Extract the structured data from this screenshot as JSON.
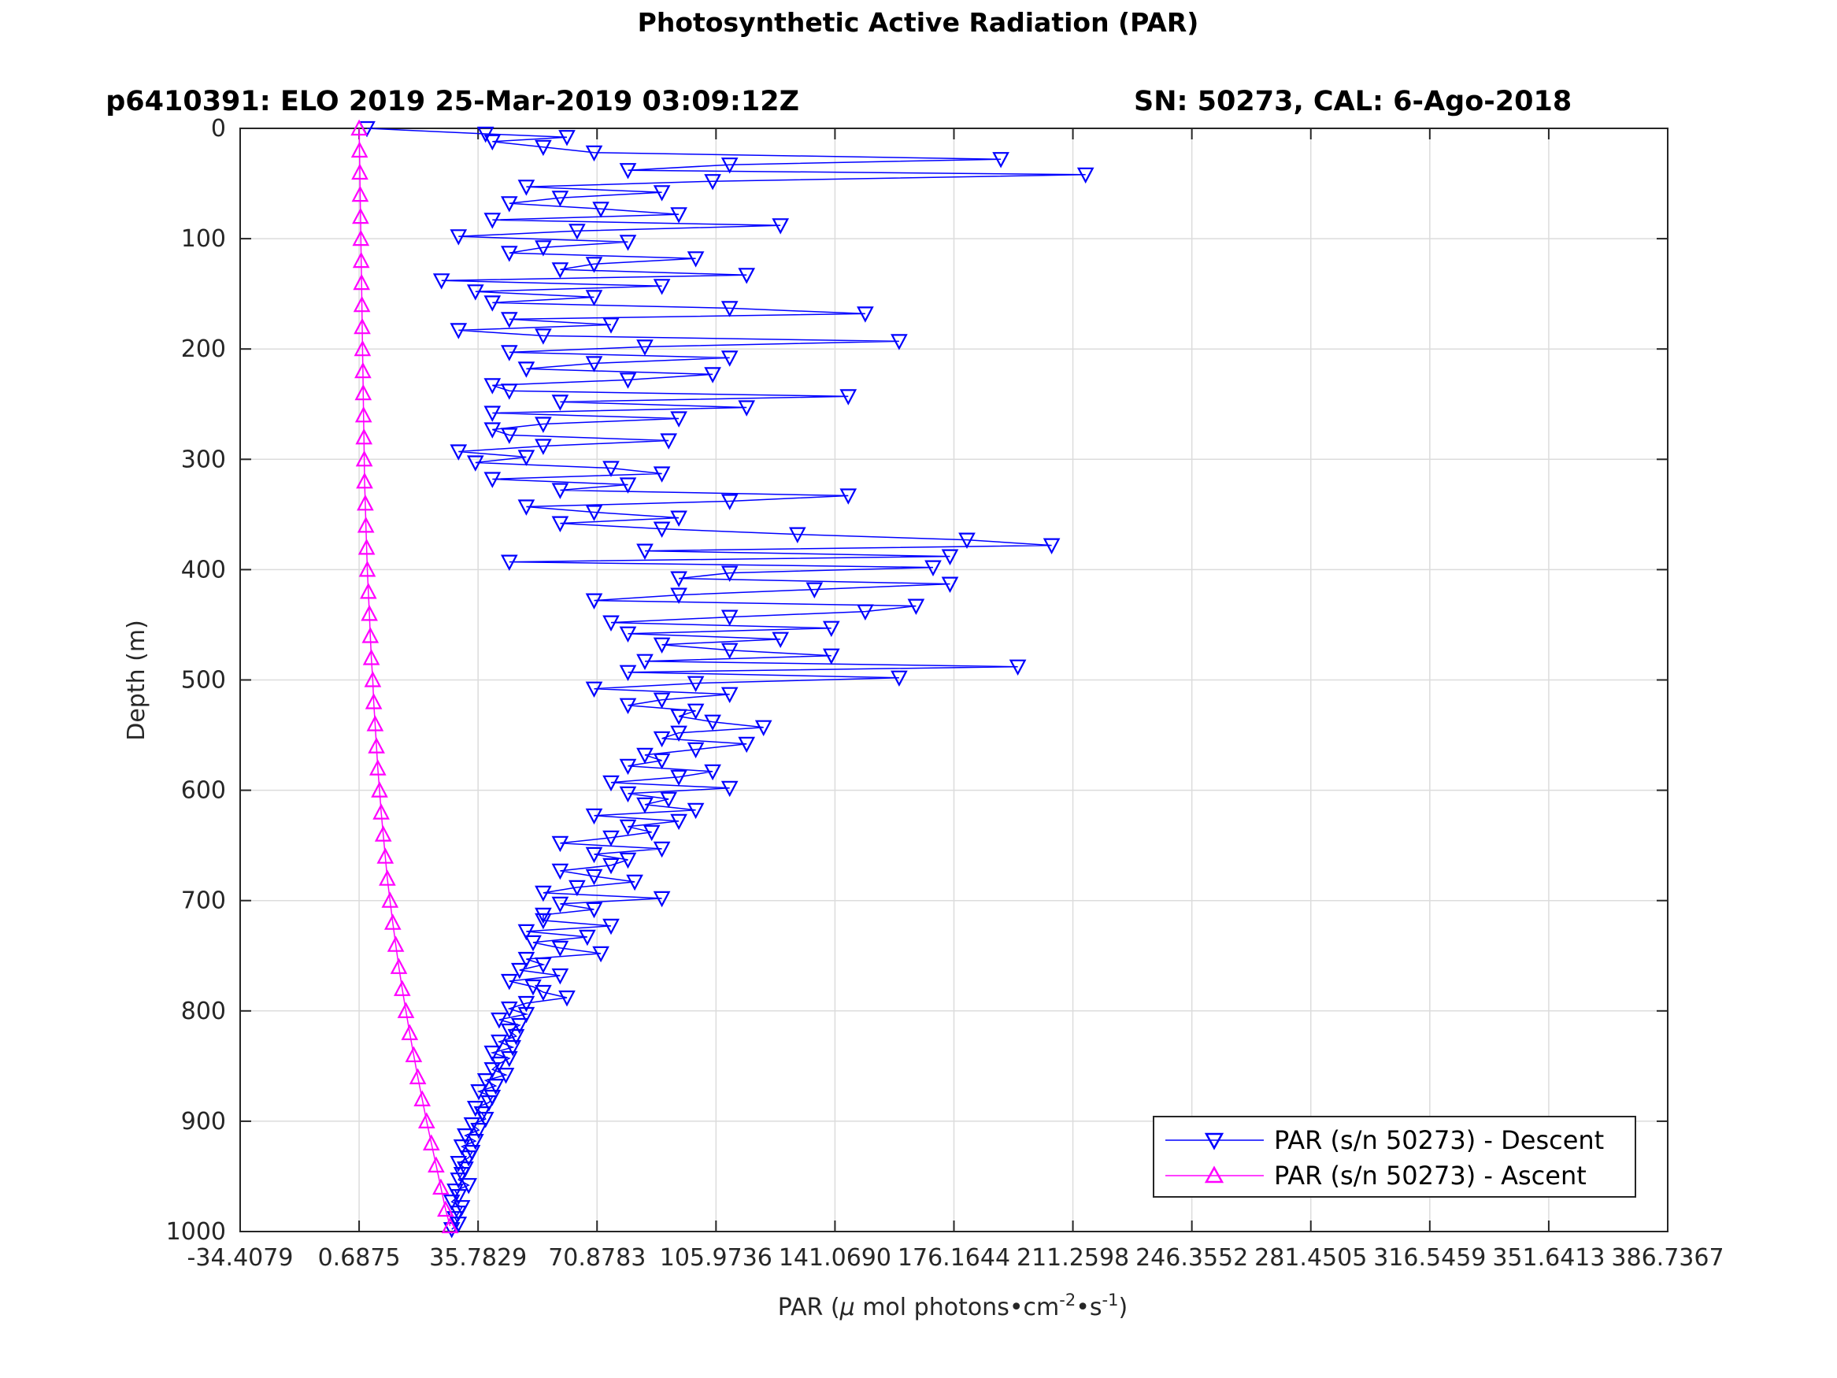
{
  "chart_data": {
    "type": "line",
    "title": "Photosynthetic Active Radiation (PAR)",
    "subtitle_left": "p6410391: ELO 2019 25-Mar-2019 03:09:12Z",
    "subtitle_right": "SN: 50273, CAL: 6-Ago-2018",
    "xlabel_prefix": "PAR (",
    "xlabel_mu": "μ",
    "xlabel_mid": " mol photons•cm",
    "xlabel_sup1": "-2",
    "xlabel_mid2": "•s",
    "xlabel_sup2": "-1",
    "xlabel_suffix": ")",
    "ylabel": "Depth (m)",
    "xlim": [
      -34.4079,
      386.7367
    ],
    "ylim": [
      0,
      1000
    ],
    "y_reversed": true,
    "grid": true,
    "legend_position": "bottom-right",
    "xticks": [
      -34.4079,
      0.6875,
      35.7829,
      70.8783,
      105.9736,
      141.069,
      176.1644,
      211.2598,
      246.3552,
      281.4505,
      316.5459,
      351.6413,
      386.7367
    ],
    "xtick_labels": [
      "-34.4079",
      "0.6875",
      "35.7829",
      "70.8783",
      "105.9736",
      "141.0690",
      "176.1644",
      "211.2598",
      "246.3552",
      "281.4505",
      "316.5459",
      "351.6413",
      "386.7367"
    ],
    "yticks": [
      0,
      100,
      200,
      300,
      400,
      500,
      600,
      700,
      800,
      900,
      1000
    ],
    "ytick_labels": [
      "0",
      "100",
      "200",
      "300",
      "400",
      "500",
      "600",
      "700",
      "800",
      "900",
      "1000"
    ],
    "series": [
      {
        "name": "PAR (s/n 50273) - Descent",
        "color": "#0000ff",
        "marker": "triangle-down",
        "depth": [
          0,
          5,
          8,
          12,
          17,
          22,
          28,
          33,
          38,
          42,
          48,
          53,
          58,
          63,
          68,
          73,
          78,
          83,
          88,
          93,
          98,
          103,
          108,
          113,
          118,
          123,
          128,
          133,
          138,
          143,
          148,
          153,
          158,
          163,
          168,
          173,
          178,
          183,
          188,
          193,
          198,
          203,
          208,
          213,
          218,
          223,
          228,
          233,
          238,
          243,
          248,
          253,
          258,
          263,
          268,
          273,
          278,
          283,
          288,
          293,
          298,
          303,
          308,
          313,
          318,
          323,
          328,
          333,
          338,
          343,
          348,
          353,
          358,
          363,
          368,
          373,
          378,
          383,
          388,
          393,
          398,
          403,
          408,
          413,
          418,
          423,
          428,
          433,
          438,
          443,
          448,
          453,
          458,
          463,
          468,
          473,
          478,
          483,
          488,
          493,
          498,
          503,
          508,
          513,
          518,
          523,
          528,
          533,
          538,
          543,
          548,
          553,
          558,
          563,
          568,
          573,
          578,
          583,
          588,
          593,
          598,
          603,
          608,
          613,
          618,
          623,
          628,
          633,
          638,
          643,
          648,
          653,
          658,
          663,
          668,
          673,
          678,
          683,
          688,
          693,
          698,
          703,
          708,
          713,
          718,
          723,
          728,
          733,
          738,
          743,
          748,
          753,
          758,
          763,
          768,
          773,
          778,
          783,
          788,
          793,
          798,
          803,
          808,
          813,
          818,
          823,
          828,
          833,
          838,
          843,
          848,
          853,
          858,
          863,
          868,
          873,
          878,
          883,
          888,
          893,
          898,
          903,
          908,
          913,
          918,
          923,
          928,
          933,
          938,
          943,
          948,
          953,
          958,
          963,
          968,
          973,
          978,
          983,
          988,
          993,
          998
        ],
        "par": [
          3,
          38,
          62,
          40,
          55,
          70,
          190,
          110,
          80,
          215,
          105,
          50,
          90,
          60,
          45,
          72,
          95,
          40,
          125,
          65,
          30,
          80,
          55,
          45,
          100,
          70,
          60,
          115,
          25,
          90,
          35,
          70,
          40,
          110,
          150,
          45,
          75,
          30,
          55,
          160,
          85,
          45,
          110,
          70,
          50,
          105,
          80,
          40,
          45,
          145,
          60,
          115,
          40,
          95,
          55,
          40,
          45,
          92,
          55,
          30,
          50,
          35,
          75,
          90,
          40,
          80,
          60,
          145,
          110,
          50,
          70,
          95,
          60,
          90,
          130,
          180,
          205,
          85,
          175,
          45,
          170,
          110,
          95,
          175,
          135,
          95,
          70,
          165,
          150,
          110,
          75,
          140,
          80,
          125,
          90,
          110,
          140,
          85,
          195,
          80,
          160,
          100,
          70,
          110,
          90,
          80,
          100,
          95,
          105,
          120,
          95,
          90,
          115,
          100,
          85,
          90,
          80,
          105,
          95,
          75,
          110,
          80,
          92,
          85,
          100,
          70,
          95,
          80,
          87,
          75,
          60,
          90,
          70,
          80,
          75,
          60,
          70,
          82,
          65,
          55,
          90,
          60,
          70,
          55,
          55,
          75,
          50,
          68,
          52,
          60,
          72,
          50,
          55,
          48,
          60,
          45,
          52,
          55,
          62,
          50,
          45,
          50,
          42,
          48,
          45,
          47,
          42,
          46,
          40,
          45,
          42,
          40,
          44,
          38,
          41,
          36,
          40,
          39,
          35,
          37,
          38,
          34,
          36,
          32,
          35,
          31,
          34,
          33,
          30,
          32,
          31,
          30,
          33,
          29,
          30,
          28,
          31,
          30,
          29,
          30,
          28
        ]
      },
      {
        "name": "PAR (s/n 50273) - Ascent",
        "color": "#ff00ff",
        "marker": "triangle-up",
        "depth": [
          0,
          20,
          40,
          60,
          80,
          100,
          120,
          140,
          160,
          180,
          200,
          220,
          240,
          260,
          280,
          300,
          320,
          340,
          360,
          380,
          400,
          420,
          440,
          460,
          480,
          500,
          520,
          540,
          560,
          580,
          600,
          620,
          640,
          660,
          680,
          700,
          720,
          740,
          760,
          780,
          800,
          820,
          840,
          860,
          880,
          900,
          920,
          940,
          960,
          980,
          995
        ],
        "par": [
          0.7,
          0.8,
          0.9,
          1.0,
          1.1,
          1.2,
          1.3,
          1.4,
          1.5,
          1.6,
          1.7,
          1.8,
          1.9,
          2.0,
          2.1,
          2.2,
          2.3,
          2.5,
          2.7,
          2.9,
          3.1,
          3.4,
          3.7,
          4.0,
          4.3,
          4.7,
          5.0,
          5.4,
          5.8,
          6.2,
          6.7,
          7.2,
          7.8,
          8.4,
          9.0,
          9.8,
          10.6,
          11.5,
          12.4,
          13.4,
          14.5,
          15.6,
          16.8,
          18.0,
          19.3,
          20.6,
          22.0,
          23.4,
          24.8,
          26.2,
          27.5
        ]
      }
    ]
  }
}
